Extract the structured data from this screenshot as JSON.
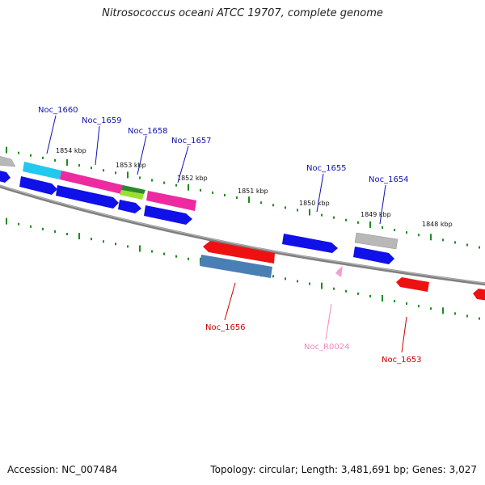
{
  "title": "Nitrosococcus oceani ATCC 19707, complete genome",
  "footer": {
    "accession": "Accession: NC_007484",
    "summary": "Topology: circular; Length: 3,481,691 bp; Genes: 3,027"
  },
  "colors": {
    "forward_gene": "#1010e8",
    "reverse_gene": "#ee1111",
    "pseudo_gray": "#b8b8b8",
    "cyan_feature": "#22c8ee",
    "pink_feature": "#ee2aa0",
    "green_feature": "#2a8a2a",
    "lime_feature": "#99e030",
    "steel_feature": "#4a7fb5",
    "rna_pink": "#f0a0d0",
    "tick_green": "#1e8c1e",
    "backbone": "#808080",
    "label_blue": "#1010b0",
    "label_red": "#cc0000",
    "label_pink": "#ee88bb"
  },
  "kbp_ticks": [
    "1854 kbp",
    "1853 kbp",
    "1852 kbp",
    "1851 kbp",
    "1850 kbp",
    "1849 kbp",
    "1848 kbp"
  ],
  "gene_labels": [
    {
      "name": "Noc_1660",
      "strand": "forward"
    },
    {
      "name": "Noc_1659",
      "strand": "forward"
    },
    {
      "name": "Noc_1658",
      "strand": "forward"
    },
    {
      "name": "Noc_1657",
      "strand": "forward"
    },
    {
      "name": "Noc_1655",
      "strand": "forward"
    },
    {
      "name": "Noc_1654",
      "strand": "forward"
    },
    {
      "name": "Noc_1656",
      "strand": "reverse"
    },
    {
      "name": "Noc_R0024",
      "strand": "rna"
    },
    {
      "name": "Noc_1653",
      "strand": "reverse"
    }
  ]
}
